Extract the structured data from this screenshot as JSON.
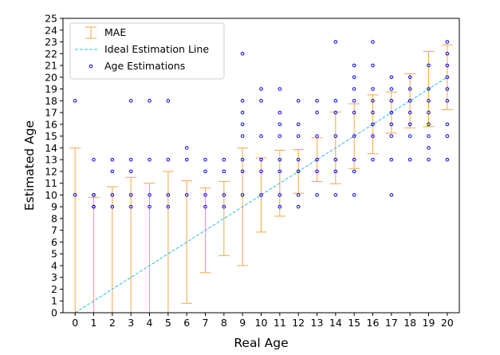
{
  "chart_data": {
    "type": "scatter",
    "xlabel": "Real Age",
    "ylabel": "Estimated Age",
    "xlim": [
      -0.65,
      20.65
    ],
    "ylim": [
      0,
      25
    ],
    "xticks": [
      0,
      1,
      2,
      3,
      4,
      5,
      6,
      7,
      8,
      9,
      10,
      11,
      12,
      13,
      14,
      15,
      16,
      17,
      18,
      19,
      20
    ],
    "yticks": [
      0,
      1,
      2,
      3,
      4,
      5,
      6,
      7,
      8,
      9,
      10,
      11,
      12,
      13,
      14,
      15,
      16,
      17,
      18,
      19,
      20,
      21,
      22,
      23,
      24,
      25
    ],
    "legend_position": "upper-left",
    "colors": {
      "mae": "#f5a742",
      "ideal": "#2fb8f0",
      "points": "#0000ff"
    },
    "series": [
      {
        "name": "MAE",
        "kind": "errorbar",
        "x": [
          0,
          1,
          2,
          3,
          4,
          5,
          6,
          7,
          8,
          9,
          10,
          11,
          12,
          13,
          14,
          15,
          16,
          17,
          18,
          19,
          20
        ],
        "y": [
          7.0,
          4.9,
          5.35,
          5.75,
          5.5,
          6.0,
          6.0,
          7.0,
          8.0,
          9.0,
          10.0,
          11.0,
          12.0,
          13.0,
          14.0,
          15.0,
          16.0,
          17.0,
          18.0,
          19.0,
          20.0
        ],
        "err": [
          7.0,
          4.9,
          5.35,
          5.75,
          5.5,
          6.0,
          5.2,
          3.6,
          3.15,
          5.0,
          3.15,
          2.8,
          1.85,
          1.85,
          3.05,
          2.75,
          2.5,
          1.75,
          2.3,
          3.2,
          2.75
        ]
      },
      {
        "name": "Ideal Estimation Line",
        "kind": "line",
        "x": [
          0,
          20
        ],
        "y": [
          0,
          20
        ]
      },
      {
        "name": "Age Estimations",
        "kind": "scatter",
        "points": [
          [
            0,
            18
          ],
          [
            0,
            10
          ],
          [
            1,
            13
          ],
          [
            1,
            10
          ],
          [
            1,
            10
          ],
          [
            1,
            9
          ],
          [
            1,
            9
          ],
          [
            2,
            13
          ],
          [
            2,
            12
          ],
          [
            2,
            10
          ],
          [
            2,
            9
          ],
          [
            3,
            18
          ],
          [
            3,
            13
          ],
          [
            3,
            12
          ],
          [
            3,
            10
          ],
          [
            3,
            9
          ],
          [
            4,
            18
          ],
          [
            4,
            13
          ],
          [
            4,
            10
          ],
          [
            4,
            9
          ],
          [
            5,
            18
          ],
          [
            5,
            13
          ],
          [
            5,
            10
          ],
          [
            5,
            9
          ],
          [
            6,
            14
          ],
          [
            6,
            13
          ],
          [
            6,
            10
          ],
          [
            7,
            13
          ],
          [
            7,
            12
          ],
          [
            7,
            10
          ],
          [
            7,
            9
          ],
          [
            8,
            13
          ],
          [
            8,
            12
          ],
          [
            8,
            10
          ],
          [
            8,
            9
          ],
          [
            9,
            22
          ],
          [
            9,
            18
          ],
          [
            9,
            17
          ],
          [
            9,
            16
          ],
          [
            9,
            15
          ],
          [
            9,
            13
          ],
          [
            9,
            12
          ],
          [
            9,
            10
          ],
          [
            10,
            19
          ],
          [
            10,
            18
          ],
          [
            10,
            15
          ],
          [
            10,
            13
          ],
          [
            10,
            12
          ],
          [
            10,
            10
          ],
          [
            11,
            19
          ],
          [
            11,
            17
          ],
          [
            11,
            16
          ],
          [
            11,
            15
          ],
          [
            11,
            13
          ],
          [
            11,
            12
          ],
          [
            11,
            10
          ],
          [
            11,
            9
          ],
          [
            12,
            18
          ],
          [
            12,
            16
          ],
          [
            12,
            15
          ],
          [
            12,
            13
          ],
          [
            12,
            12
          ],
          [
            12,
            10
          ],
          [
            12,
            9
          ],
          [
            13,
            18
          ],
          [
            13,
            17
          ],
          [
            13,
            15
          ],
          [
            13,
            13
          ],
          [
            13,
            12
          ],
          [
            13,
            10
          ],
          [
            14,
            23
          ],
          [
            14,
            18
          ],
          [
            14,
            17
          ],
          [
            14,
            15
          ],
          [
            14,
            13
          ],
          [
            14,
            12
          ],
          [
            14,
            10
          ],
          [
            15,
            21
          ],
          [
            15,
            20
          ],
          [
            15,
            19
          ],
          [
            15,
            18
          ],
          [
            15,
            17
          ],
          [
            15,
            15
          ],
          [
            15,
            13
          ],
          [
            15,
            12
          ],
          [
            15,
            10
          ],
          [
            16,
            23
          ],
          [
            16,
            21
          ],
          [
            16,
            19
          ],
          [
            16,
            18
          ],
          [
            16,
            17
          ],
          [
            16,
            16
          ],
          [
            16,
            15
          ],
          [
            16,
            13
          ],
          [
            17,
            20
          ],
          [
            17,
            19
          ],
          [
            17,
            18
          ],
          [
            17,
            17
          ],
          [
            17,
            16
          ],
          [
            17,
            15
          ],
          [
            17,
            13
          ],
          [
            17,
            10
          ],
          [
            18,
            20
          ],
          [
            18,
            19
          ],
          [
            18,
            18
          ],
          [
            18,
            17
          ],
          [
            18,
            16
          ],
          [
            18,
            15
          ],
          [
            18,
            13
          ],
          [
            19,
            21
          ],
          [
            19,
            19
          ],
          [
            19,
            18
          ],
          [
            19,
            17
          ],
          [
            19,
            16
          ],
          [
            19,
            15
          ],
          [
            19,
            14
          ],
          [
            19,
            13
          ],
          [
            20,
            23
          ],
          [
            20,
            22
          ],
          [
            20,
            21
          ],
          [
            20,
            20
          ],
          [
            20,
            19
          ],
          [
            20,
            18
          ],
          [
            20,
            16
          ],
          [
            20,
            15
          ],
          [
            20,
            13
          ]
        ]
      }
    ]
  }
}
